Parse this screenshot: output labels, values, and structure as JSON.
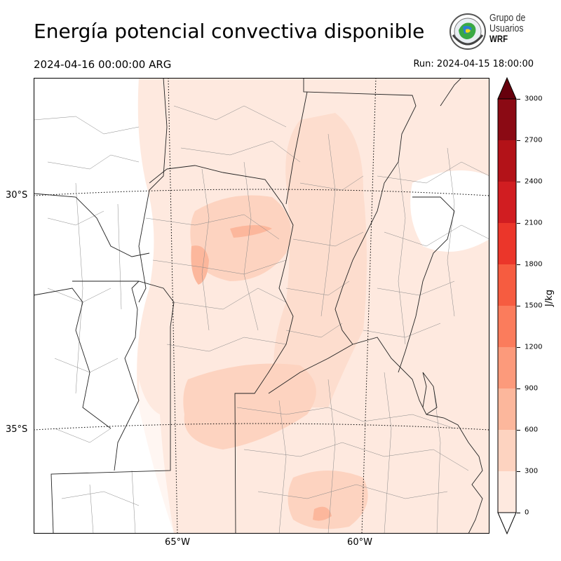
{
  "header": {
    "title": "Energía potencial convectiva disponible",
    "valid_time": "2024-04-16 00:00:00 ARG",
    "run_time": "Run: 2024-04-15 18:00:00"
  },
  "logo": {
    "line1": "Grupo de",
    "line2": "Usuarios",
    "line3": "WRF"
  },
  "map": {
    "lat_labels": [
      "30°S",
      "35°S"
    ],
    "lon_labels": [
      "65°W",
      "60°W"
    ]
  },
  "colorbar": {
    "label": "J/kg",
    "ticks": [
      "0",
      "300",
      "600",
      "900",
      "1200",
      "1500",
      "1800",
      "2100",
      "2400",
      "2700",
      "3000"
    ],
    "colors": [
      "#fee9df",
      "#fdd3c0",
      "#fcb79c",
      "#fc9a7b",
      "#fb7c5c",
      "#f65c40",
      "#eb362a",
      "#d11d21",
      "#b31218",
      "#8b0a14",
      "#67000d"
    ]
  }
}
